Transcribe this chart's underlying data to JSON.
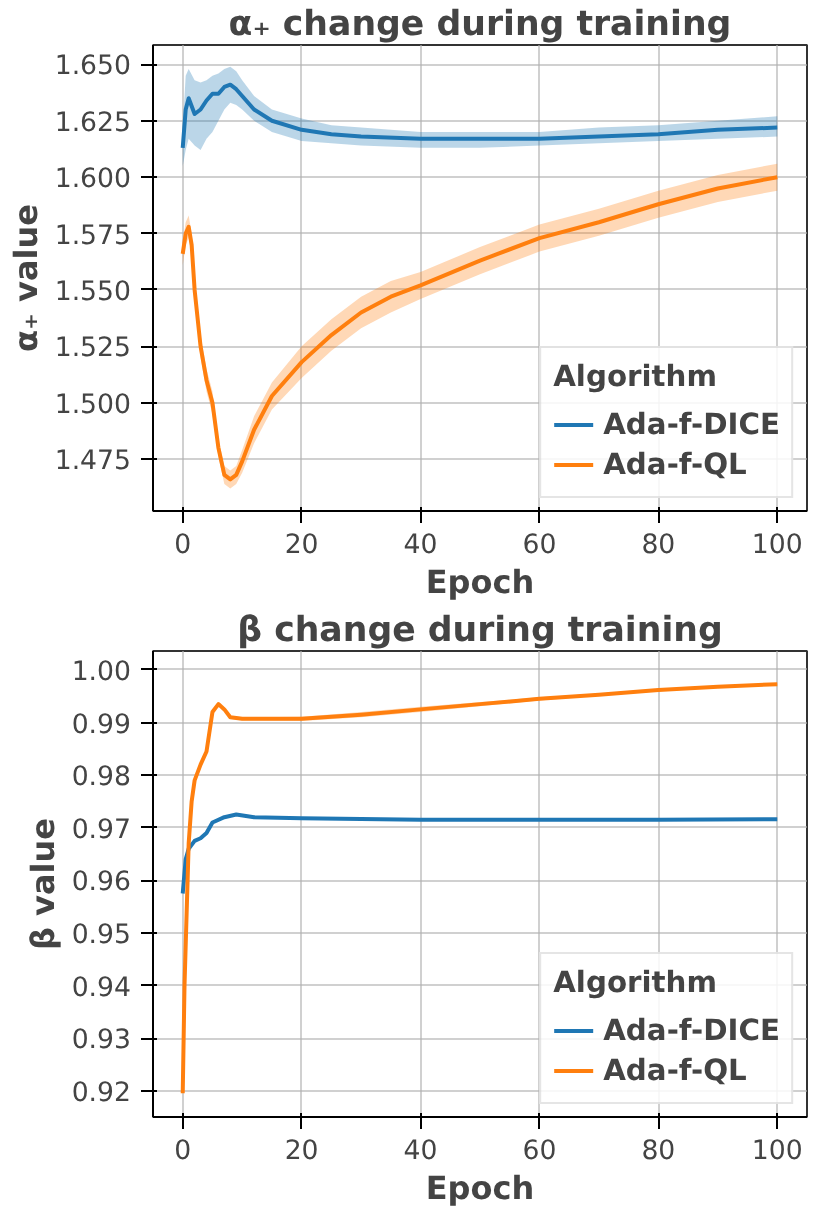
{
  "chart_data": [
    {
      "type": "line",
      "title": "α₊ change during training",
      "xlabel": "Epoch",
      "ylabel": "α₊ value",
      "legend_title": "Algorithm",
      "legend": "bottom right",
      "grid": true,
      "xlim": [
        -5,
        105
      ],
      "xticks": [
        0,
        20,
        40,
        60,
        80,
        100
      ],
      "ylim": [
        1.452,
        1.6586
      ],
      "yticks": [
        {
          "value": 1.475,
          "label": "1.475"
        },
        {
          "value": 1.5,
          "label": "1.500"
        },
        {
          "value": 1.525,
          "label": "1.525"
        },
        {
          "value": 1.55,
          "label": "1.550"
        },
        {
          "value": 1.575,
          "label": "1.575"
        },
        {
          "value": 1.6,
          "label": "1.600"
        },
        {
          "value": 1.625,
          "label": "1.625"
        },
        {
          "value": 1.65,
          "label": "1.650"
        }
      ],
      "series": [
        {
          "name": "Ada-f-DICE",
          "color": "#1f77b4",
          "x": [
            0,
            0.5,
            1,
            2,
            3,
            4,
            5,
            6,
            7,
            8,
            9,
            10,
            12,
            15,
            20,
            25,
            30,
            40,
            50,
            60,
            70,
            80,
            90,
            100
          ],
          "values": [
            1.613,
            1.63,
            1.635,
            1.628,
            1.63,
            1.634,
            1.637,
            1.637,
            1.64,
            1.641,
            1.639,
            1.636,
            1.63,
            1.625,
            1.621,
            1.619,
            1.618,
            1.617,
            1.617,
            1.617,
            1.618,
            1.619,
            1.621,
            1.622
          ],
          "lower": [
            1.605,
            1.612,
            1.617,
            1.614,
            1.612,
            1.617,
            1.62,
            1.625,
            1.63,
            1.633,
            1.632,
            1.63,
            1.625,
            1.62,
            1.616,
            1.615,
            1.614,
            1.613,
            1.613,
            1.614,
            1.615,
            1.616,
            1.617,
            1.618
          ],
          "upper": [
            1.622,
            1.645,
            1.648,
            1.643,
            1.642,
            1.643,
            1.645,
            1.646,
            1.648,
            1.649,
            1.647,
            1.643,
            1.636,
            1.63,
            1.626,
            1.623,
            1.622,
            1.62,
            1.62,
            1.62,
            1.622,
            1.623,
            1.625,
            1.627
          ]
        },
        {
          "name": "Ada-f-QL",
          "color": "#ff7f0e",
          "x": [
            0,
            0.5,
            1,
            1.5,
            2,
            3,
            4,
            5,
            6,
            7,
            8,
            9,
            10,
            12,
            15,
            20,
            25,
            30,
            35,
            40,
            50,
            60,
            70,
            80,
            90,
            100
          ],
          "values": [
            1.566,
            1.575,
            1.578,
            1.57,
            1.55,
            1.525,
            1.51,
            1.5,
            1.48,
            1.468,
            1.466,
            1.468,
            1.474,
            1.488,
            1.503,
            1.518,
            1.53,
            1.54,
            1.547,
            1.552,
            1.563,
            1.573,
            1.58,
            1.588,
            1.595,
            1.6
          ],
          "lower": [
            1.561,
            1.57,
            1.573,
            1.565,
            1.545,
            1.52,
            1.505,
            1.495,
            1.476,
            1.464,
            1.462,
            1.464,
            1.469,
            1.482,
            1.497,
            1.511,
            1.523,
            1.533,
            1.54,
            1.546,
            1.557,
            1.567,
            1.574,
            1.582,
            1.589,
            1.594
          ],
          "upper": [
            1.571,
            1.58,
            1.583,
            1.575,
            1.555,
            1.53,
            1.515,
            1.505,
            1.484,
            1.472,
            1.47,
            1.472,
            1.479,
            1.494,
            1.509,
            1.525,
            1.537,
            1.547,
            1.554,
            1.558,
            1.569,
            1.579,
            1.586,
            1.594,
            1.601,
            1.606
          ]
        }
      ]
    },
    {
      "type": "line",
      "title": "β change during training",
      "xlabel": "Epoch",
      "ylabel": "β value",
      "legend_title": "Algorithm",
      "legend": "bottom right",
      "grid": true,
      "xlim": [
        -5,
        105
      ],
      "xticks": [
        0,
        20,
        40,
        60,
        80,
        100
      ],
      "ylim": [
        0.915,
        1.0036
      ],
      "yticks": [
        {
          "value": 0.92,
          "label": "0.92"
        },
        {
          "value": 0.93,
          "label": "0.93"
        },
        {
          "value": 0.94,
          "label": "0.94"
        },
        {
          "value": 0.95,
          "label": "0.95"
        },
        {
          "value": 0.96,
          "label": "0.96"
        },
        {
          "value": 0.97,
          "label": "0.97"
        },
        {
          "value": 0.98,
          "label": "0.98"
        },
        {
          "value": 0.99,
          "label": "0.99"
        },
        {
          "value": 1.0,
          "label": "1.00"
        }
      ],
      "series": [
        {
          "name": "Ada-f-DICE",
          "color": "#1f77b4",
          "x": [
            0,
            0.5,
            1,
            2,
            3,
            4,
            5,
            7,
            9,
            12,
            20,
            40,
            60,
            80,
            100
          ],
          "values": [
            0.9575,
            0.964,
            0.966,
            0.9675,
            0.968,
            0.969,
            0.971,
            0.972,
            0.9725,
            0.972,
            0.9718,
            0.9715,
            0.9715,
            0.9715,
            0.9716
          ]
        },
        {
          "name": "Ada-f-QL",
          "color": "#ff7f0e",
          "x": [
            0,
            0.3,
            1,
            1.5,
            2,
            3,
            4,
            5,
            6,
            7,
            8,
            10,
            20,
            30,
            40,
            50,
            60,
            70,
            80,
            90,
            100
          ],
          "values": [
            0.9195,
            0.94,
            0.967,
            0.975,
            0.979,
            0.982,
            0.9845,
            0.992,
            0.9935,
            0.9925,
            0.991,
            0.9907,
            0.9907,
            0.9915,
            0.9925,
            0.9935,
            0.9945,
            0.9953,
            0.9962,
            0.9968,
            0.9973
          ],
          "lower": [
            0.9195,
            0.94,
            0.967,
            0.975,
            0.979,
            0.982,
            0.9845,
            0.9917,
            0.9932,
            0.9922,
            0.9907,
            0.9904,
            0.9903,
            0.991,
            0.992,
            0.9931,
            0.9942,
            0.9951,
            0.996,
            0.9967,
            0.9972
          ],
          "upper": [
            0.9195,
            0.94,
            0.967,
            0.975,
            0.979,
            0.982,
            0.9845,
            0.9923,
            0.9938,
            0.9928,
            0.9913,
            0.991,
            0.9911,
            0.992,
            0.993,
            0.9939,
            0.9948,
            0.9955,
            0.9964,
            0.9969,
            0.9974
          ]
        }
      ]
    }
  ]
}
